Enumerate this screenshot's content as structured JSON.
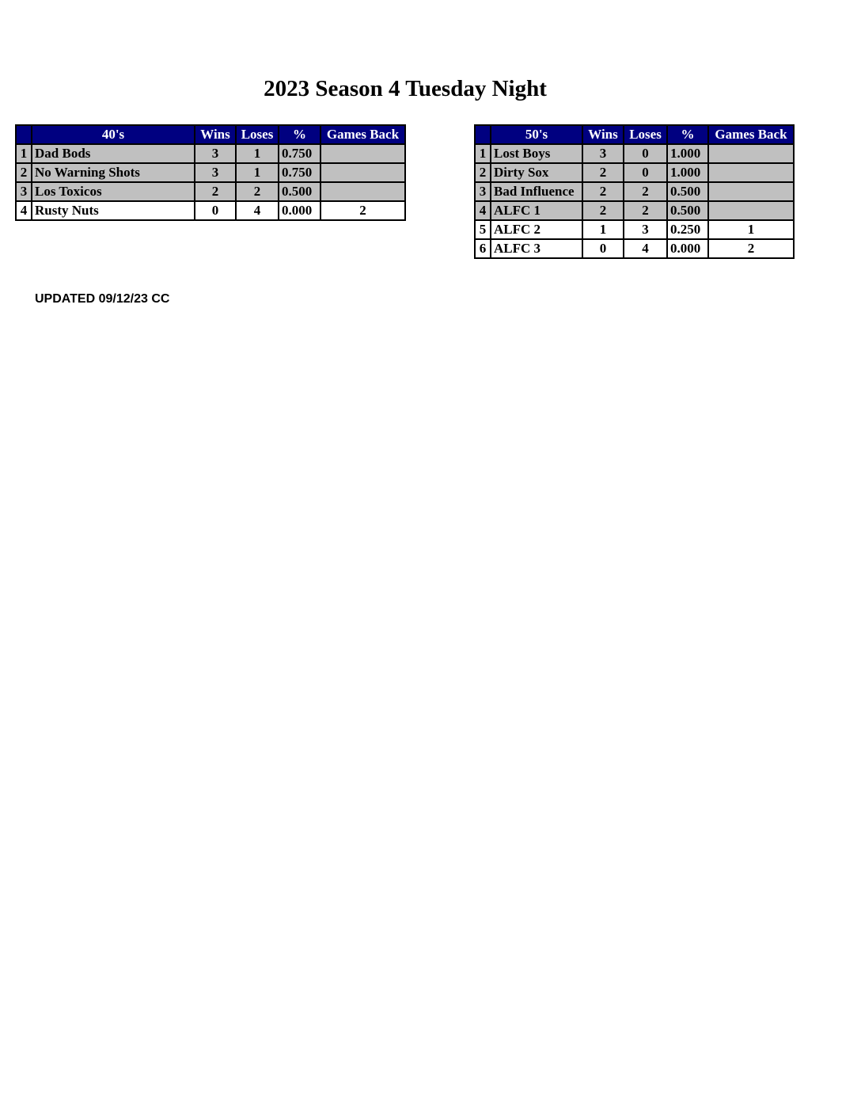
{
  "title": "2023 Season 4 Tuesday Night",
  "columns": [
    "Wins",
    "Loses",
    "%",
    "Games Back"
  ],
  "colors": {
    "header_bg": "#000080",
    "shaded_row": "#c0c0c0"
  },
  "tables": [
    {
      "division": "40's",
      "rows": [
        {
          "rank": "1",
          "team": "Dad Bods",
          "wins": "3",
          "loses": "1",
          "pct": "0.750",
          "games_back": "",
          "shaded": true
        },
        {
          "rank": "2",
          "team": "No Warning Shots",
          "wins": "3",
          "loses": "1",
          "pct": "0.750",
          "games_back": "",
          "shaded": true
        },
        {
          "rank": "3",
          "team": "Los Toxicos",
          "wins": "2",
          "loses": "2",
          "pct": "0.500",
          "games_back": "",
          "shaded": true
        },
        {
          "rank": "4",
          "team": "Rusty Nuts",
          "wins": "0",
          "loses": "4",
          "pct": "0.000",
          "games_back": "2",
          "shaded": false
        }
      ]
    },
    {
      "division": "50's",
      "rows": [
        {
          "rank": "1",
          "team": "Lost Boys",
          "wins": "3",
          "loses": "0",
          "pct": "1.000",
          "games_back": "",
          "shaded": true
        },
        {
          "rank": "2",
          "team": "Dirty Sox",
          "wins": "2",
          "loses": "0",
          "pct": "1.000",
          "games_back": "",
          "shaded": true
        },
        {
          "rank": "3",
          "team": "Bad Influence",
          "wins": "2",
          "loses": "2",
          "pct": "0.500",
          "games_back": "",
          "shaded": true
        },
        {
          "rank": "4",
          "team": "ALFC 1",
          "wins": "2",
          "loses": "2",
          "pct": "0.500",
          "games_back": "",
          "shaded": true
        },
        {
          "rank": "5",
          "team": "ALFC 2",
          "wins": "1",
          "loses": "3",
          "pct": "0.250",
          "games_back": "1",
          "shaded": false
        },
        {
          "rank": "6",
          "team": "ALFC 3",
          "wins": "0",
          "loses": "4",
          "pct": "0.000",
          "games_back": "2",
          "shaded": false
        }
      ]
    }
  ],
  "updated": "UPDATED 09/12/23 CC"
}
